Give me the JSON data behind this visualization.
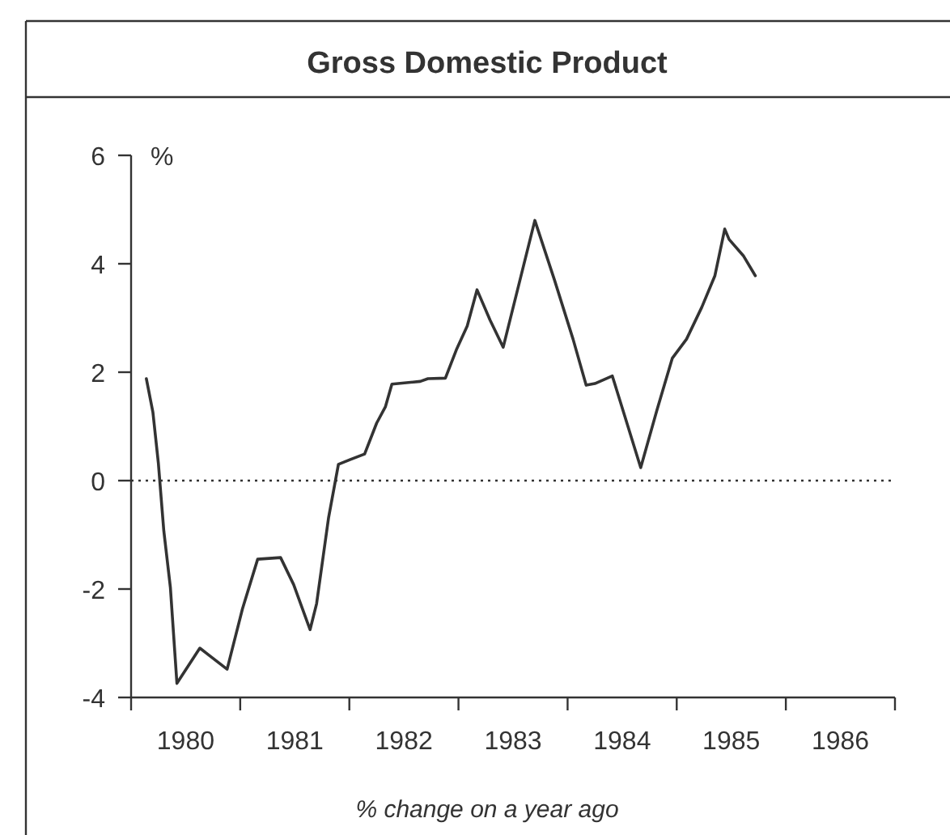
{
  "chart_data": {
    "type": "line",
    "title": "Gross Domestic Product",
    "ylabel": "%",
    "xlabel": "% change on a year ago",
    "xlim": [
      1980,
      1987
    ],
    "ylim": [
      -4,
      6
    ],
    "yticks": [
      -4,
      -2,
      0,
      2,
      4,
      6
    ],
    "xticks": [
      {
        "value": 1980,
        "label": null
      },
      {
        "value": 1981,
        "label": null
      },
      {
        "value": 1982,
        "label": null
      },
      {
        "value": 1983,
        "label": null
      },
      {
        "value": 1984,
        "label": null
      },
      {
        "value": 1985,
        "label": null
      },
      {
        "value": 1986,
        "label": null
      },
      {
        "value": 1987,
        "label": null
      },
      {
        "value": 1980.5,
        "label": "1980"
      },
      {
        "value": 1981.5,
        "label": "1981"
      },
      {
        "value": 1982.5,
        "label": "1982"
      },
      {
        "value": 1983.5,
        "label": "1983"
      },
      {
        "value": 1984.5,
        "label": "1984"
      },
      {
        "value": 1985.5,
        "label": "1985"
      },
      {
        "value": 1986.5,
        "label": "1986"
      }
    ],
    "ref_lines": [
      {
        "axis": "y",
        "value": 0,
        "line_style": "dotted",
        "color": "#333333"
      }
    ],
    "series": [
      {
        "color": "#333333",
        "x": [
          1980.14,
          1980.2,
          1980.25,
          1980.3,
          1980.36,
          1980.42,
          1980.63,
          1980.88,
          1981.02,
          1981.16,
          1981.37,
          1981.49,
          1981.64,
          1981.7,
          1981.81,
          1981.9,
          1982.01,
          1982.14,
          1982.25,
          1982.33,
          1982.39,
          1982.65,
          1982.72,
          1982.88,
          1982.98,
          1983.08,
          1983.17,
          1983.29,
          1983.41,
          1983.7,
          1983.88,
          1984.05,
          1984.17,
          1984.25,
          1984.41,
          1984.67,
          1984.82,
          1984.96,
          1985.09,
          1985.23,
          1985.35,
          1985.44,
          1985.48,
          1985.61,
          1985.72
        ],
        "values": [
          1.88,
          1.26,
          0.32,
          -0.93,
          -1.97,
          -3.74,
          -3.09,
          -3.48,
          -2.37,
          -1.45,
          -1.42,
          -1.92,
          -2.75,
          -2.27,
          -0.68,
          0.3,
          0.39,
          0.49,
          1.06,
          1.36,
          1.78,
          1.83,
          1.88,
          1.89,
          2.41,
          2.85,
          3.52,
          2.96,
          2.46,
          4.8,
          3.7,
          2.61,
          1.76,
          1.79,
          1.93,
          0.24,
          1.31,
          2.26,
          2.61,
          3.2,
          3.78,
          4.64,
          4.45,
          4.15,
          3.78
        ]
      }
    ]
  }
}
